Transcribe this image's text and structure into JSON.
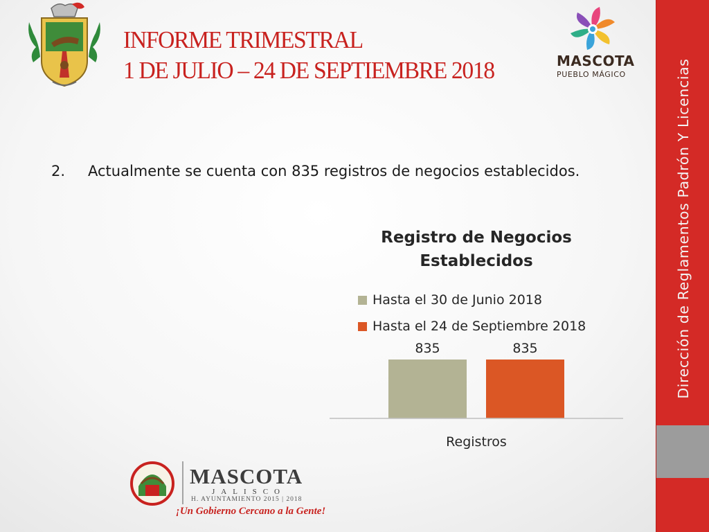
{
  "header": {
    "title_line1": "INFORME TRIMESTRAL",
    "title_line2": "1 DE JULIO – 24 DE SEPTIEMBRE 2018"
  },
  "logos": {
    "crest_icon": "municipal-crest-icon",
    "pueblo_magico_icon": "pueblo-magico-flower-icon",
    "pueblo_magico_word": "MASCOTA",
    "pueblo_magico_sub": "PUEBLO MÁGICO",
    "mascota_footer_icon": "mascota-seal-icon",
    "mascota_footer_word": "MASCOTA",
    "mascota_footer_sub": "JALISCO",
    "mascota_footer_ayuntamiento": "H. AYUNTAMIENTO 2015 | 2018",
    "mascota_footer_slogan": "¡Un Gobierno Cercano a la Gente!"
  },
  "sidebar": {
    "label": "Dirección de Reglamentos Padrón Y Licencias",
    "color": "#d42a26"
  },
  "content": {
    "bullet_number": "2.",
    "bullet_text": "Actualmente se cuenta con 835 registros de negocios establecidos."
  },
  "chart_data": {
    "type": "bar",
    "title": "Registro de Negocios Establecidos",
    "categories": [
      "Registros"
    ],
    "series": [
      {
        "name": "Hasta el 30 de Junio 2018",
        "values": [
          835
        ],
        "color": "#b3b394"
      },
      {
        "name": "Hasta el 24 de Septiembre 2018",
        "values": [
          835
        ],
        "color": "#db5725"
      }
    ],
    "legend_position": "top",
    "data_labels": true,
    "grid": false
  }
}
